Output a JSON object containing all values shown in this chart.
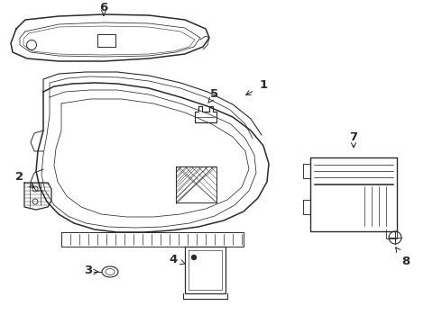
{
  "background_color": "#ffffff",
  "line_color": "#2a2a2a",
  "figsize": [
    4.9,
    3.6
  ],
  "dpi": 100,
  "xlim": [
    0,
    490
  ],
  "ylim": [
    0,
    360
  ]
}
